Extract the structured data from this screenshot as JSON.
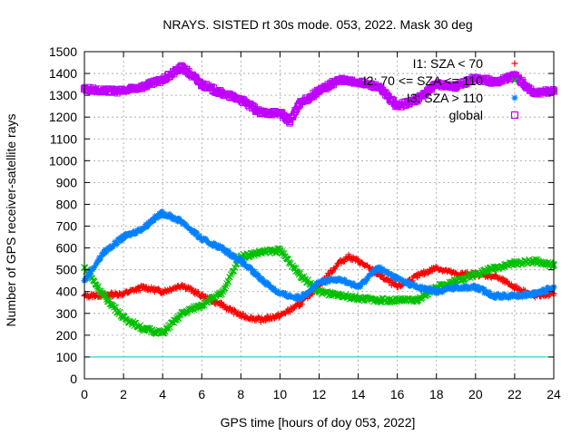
{
  "chart_data": {
    "type": "scatter",
    "title": "NRAYS. SISTED rt 30s mode. 053, 2022. Mask 30 deg",
    "xlabel": "GPS time [hours of doy 053, 2022]",
    "ylabel": "Number of GPS receiver-satellite rays",
    "xlim": [
      0,
      24
    ],
    "ylim": [
      0,
      1500
    ],
    "xticks": [
      0,
      2,
      4,
      6,
      8,
      10,
      12,
      14,
      16,
      18,
      20,
      22,
      24
    ],
    "yticks": [
      0,
      100,
      200,
      300,
      400,
      500,
      600,
      700,
      800,
      900,
      1000,
      1100,
      1200,
      1300,
      1400,
      1500
    ],
    "grid": true,
    "legend_position": "top-right",
    "reference_line": {
      "y": 100,
      "color": "#00c8c8"
    },
    "series": [
      {
        "name": "I1: SZA < 70",
        "color": "#ff0000",
        "marker": "+",
        "x": [
          0,
          1,
          2,
          3,
          4,
          5,
          6,
          7,
          8,
          9,
          10,
          11,
          12,
          13,
          13.5,
          14,
          15,
          16,
          17,
          18,
          19,
          20,
          21,
          22,
          23,
          24
        ],
        "y": [
          380,
          385,
          390,
          420,
          400,
          430,
          380,
          340,
          290,
          270,
          290,
          340,
          430,
          530,
          560,
          540,
          480,
          420,
          470,
          510,
          480,
          480,
          470,
          420,
          380,
          390
        ]
      },
      {
        "name": "I2: 70 <= SZA <= 110",
        "color": "#00c000",
        "marker": "x",
        "x": [
          0,
          1,
          2,
          3,
          4,
          5,
          6,
          7,
          8,
          9,
          10,
          11,
          12,
          13,
          14,
          15,
          16,
          17,
          18,
          19,
          20,
          21,
          22,
          23,
          24
        ],
        "y": [
          510,
          380,
          280,
          230,
          210,
          300,
          340,
          390,
          560,
          580,
          590,
          480,
          400,
          380,
          370,
          360,
          360,
          360,
          420,
          450,
          480,
          510,
          530,
          540,
          520
        ]
      },
      {
        "name": "I3: SZA > 110",
        "color": "#0080ff",
        "marker": "*",
        "x": [
          0,
          1,
          2,
          3,
          3.5,
          4,
          5,
          6,
          7,
          8,
          9,
          10,
          11,
          12,
          13,
          14,
          15,
          16,
          17,
          18,
          19,
          20,
          21,
          22,
          23,
          24
        ],
        "y": [
          450,
          580,
          650,
          690,
          730,
          760,
          720,
          640,
          600,
          540,
          460,
          390,
          370,
          440,
          460,
          420,
          510,
          460,
          420,
          400,
          420,
          420,
          380,
          380,
          390,
          420
        ]
      },
      {
        "name": "global",
        "color": "#c000ff",
        "marker": "square",
        "x": [
          0,
          1,
          2,
          3,
          4,
          5,
          6,
          7,
          8,
          9,
          10,
          10.5,
          11,
          12,
          13,
          14,
          15,
          16,
          17,
          18,
          19,
          20,
          21,
          22,
          23,
          24
        ],
        "y": [
          1330,
          1320,
          1320,
          1340,
          1370,
          1430,
          1350,
          1310,
          1280,
          1220,
          1220,
          1180,
          1260,
          1320,
          1370,
          1360,
          1340,
          1250,
          1280,
          1350,
          1340,
          1380,
          1360,
          1390,
          1310,
          1320
        ]
      }
    ]
  }
}
